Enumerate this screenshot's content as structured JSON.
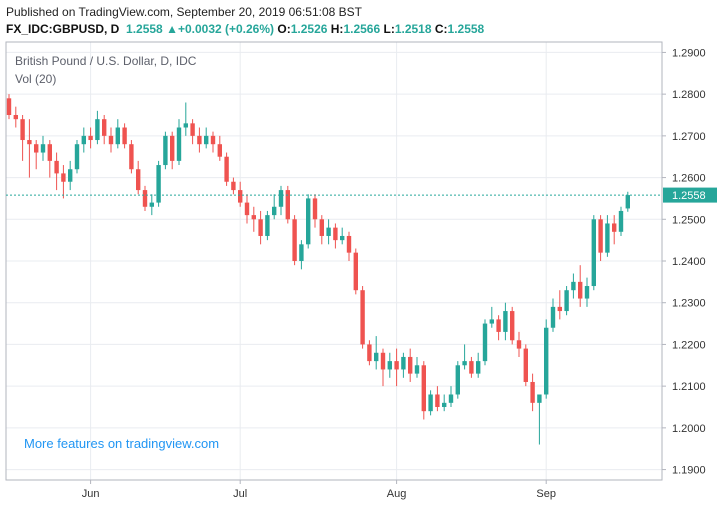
{
  "header": {
    "published": "Published on TradingView.com, September 20, 2019 06:51:08 BST",
    "symbol": "FX_IDC:GBPUSD, D",
    "last": "1.2558",
    "arrow": "▲",
    "change": "+0.0032 (+0.26%)",
    "o_label": "O:",
    "o_val": "1.2526",
    "h_label": "H:",
    "h_val": "1.2566",
    "l_label": "L:",
    "l_val": "1.2518",
    "c_label": "C:",
    "c_val": "1.2558"
  },
  "footer_link": "More features on tradingview.com",
  "colors": {
    "up": "#26a69a",
    "down": "#ef5350",
    "grid": "#e9ecf0",
    "last_price": "#26a69a"
  },
  "chart_data": {
    "type": "candlestick",
    "title": "British Pound / U.S. Dollar, D, IDC",
    "subtitle": "Vol (20)",
    "last_price": 1.2558,
    "last_price_label": "1.2558",
    "ylim": [
      1.1875,
      1.2925
    ],
    "yticks": [
      1.19,
      1.2,
      1.21,
      1.22,
      1.23,
      1.24,
      1.25,
      1.26,
      1.27,
      1.28,
      1.29
    ],
    "ytick_labels": [
      "1.1900",
      "1.2000",
      "1.2100",
      "1.2200",
      "1.2300",
      "1.2400",
      "1.2500",
      "1.2600",
      "1.2700",
      "1.2800",
      "1.2900"
    ],
    "xtick_labels": [
      {
        "label": "Jun",
        "index": 12
      },
      {
        "label": "Jul",
        "index": 34
      },
      {
        "label": "Aug",
        "index": 57
      },
      {
        "label": "Sep",
        "index": 79
      }
    ],
    "candles": [
      [
        1.279,
        1.28,
        1.274,
        1.275
      ],
      [
        1.275,
        1.277,
        1.272,
        1.274
      ],
      [
        1.274,
        1.275,
        1.264,
        1.269
      ],
      [
        1.269,
        1.274,
        1.26,
        1.268
      ],
      [
        1.268,
        1.269,
        1.262,
        1.266
      ],
      [
        1.266,
        1.27,
        1.264,
        1.268
      ],
      [
        1.268,
        1.269,
        1.26,
        1.264
      ],
      [
        1.264,
        1.266,
        1.257,
        1.261
      ],
      [
        1.261,
        1.263,
        1.255,
        1.259
      ],
      [
        1.259,
        1.264,
        1.257,
        1.262
      ],
      [
        1.262,
        1.269,
        1.261,
        1.268
      ],
      [
        1.268,
        1.272,
        1.266,
        1.27
      ],
      [
        1.27,
        1.272,
        1.267,
        1.269
      ],
      [
        1.269,
        1.276,
        1.268,
        1.274
      ],
      [
        1.274,
        1.275,
        1.268,
        1.27
      ],
      [
        1.27,
        1.272,
        1.266,
        1.268
      ],
      [
        1.268,
        1.274,
        1.267,
        1.272
      ],
      [
        1.272,
        1.273,
        1.267,
        1.268
      ],
      [
        1.268,
        1.269,
        1.261,
        1.262
      ],
      [
        1.262,
        1.264,
        1.256,
        1.257
      ],
      [
        1.257,
        1.258,
        1.252,
        1.253
      ],
      [
        1.253,
        1.256,
        1.251,
        1.254
      ],
      [
        1.254,
        1.264,
        1.253,
        1.263
      ],
      [
        1.263,
        1.271,
        1.262,
        1.27
      ],
      [
        1.27,
        1.271,
        1.262,
        1.264
      ],
      [
        1.264,
        1.274,
        1.263,
        1.272
      ],
      [
        1.272,
        1.278,
        1.27,
        1.273
      ],
      [
        1.273,
        1.274,
        1.268,
        1.27
      ],
      [
        1.27,
        1.272,
        1.266,
        1.268
      ],
      [
        1.268,
        1.272,
        1.267,
        1.27
      ],
      [
        1.27,
        1.271,
        1.266,
        1.268
      ],
      [
        1.268,
        1.27,
        1.264,
        1.265
      ],
      [
        1.265,
        1.266,
        1.258,
        1.259
      ],
      [
        1.259,
        1.26,
        1.256,
        1.257
      ],
      [
        1.257,
        1.259,
        1.253,
        1.254
      ],
      [
        1.254,
        1.256,
        1.249,
        1.251
      ],
      [
        1.251,
        1.253,
        1.247,
        1.25
      ],
      [
        1.25,
        1.252,
        1.244,
        1.246
      ],
      [
        1.246,
        1.252,
        1.245,
        1.251
      ],
      [
        1.251,
        1.256,
        1.25,
        1.253
      ],
      [
        1.253,
        1.258,
        1.251,
        1.257
      ],
      [
        1.257,
        1.258,
        1.249,
        1.25
      ],
      [
        1.25,
        1.251,
        1.239,
        1.24
      ],
      [
        1.24,
        1.245,
        1.238,
        1.244
      ],
      [
        1.244,
        1.256,
        1.243,
        1.255
      ],
      [
        1.255,
        1.256,
        1.248,
        1.25
      ],
      [
        1.25,
        1.251,
        1.244,
        1.246
      ],
      [
        1.246,
        1.25,
        1.244,
        1.248
      ],
      [
        1.248,
        1.249,
        1.243,
        1.245
      ],
      [
        1.245,
        1.248,
        1.244,
        1.246
      ],
      [
        1.246,
        1.247,
        1.24,
        1.242
      ],
      [
        1.242,
        1.243,
        1.232,
        1.233
      ],
      [
        1.233,
        1.234,
        1.219,
        1.22
      ],
      [
        1.22,
        1.221,
        1.215,
        1.216
      ],
      [
        1.216,
        1.222,
        1.214,
        1.218
      ],
      [
        1.218,
        1.219,
        1.21,
        1.214
      ],
      [
        1.214,
        1.218,
        1.212,
        1.216
      ],
      [
        1.216,
        1.219,
        1.21,
        1.214
      ],
      [
        1.214,
        1.218,
        1.212,
        1.217
      ],
      [
        1.217,
        1.219,
        1.211,
        1.213
      ],
      [
        1.213,
        1.217,
        1.212,
        1.215
      ],
      [
        1.215,
        1.216,
        1.202,
        1.204
      ],
      [
        1.204,
        1.209,
        1.203,
        1.208
      ],
      [
        1.208,
        1.21,
        1.204,
        1.205
      ],
      [
        1.205,
        1.208,
        1.204,
        1.206
      ],
      [
        1.206,
        1.21,
        1.205,
        1.208
      ],
      [
        1.208,
        1.216,
        1.207,
        1.215
      ],
      [
        1.215,
        1.22,
        1.214,
        1.216
      ],
      [
        1.216,
        1.217,
        1.212,
        1.213
      ],
      [
        1.213,
        1.218,
        1.212,
        1.216
      ],
      [
        1.216,
        1.226,
        1.215,
        1.225
      ],
      [
        1.225,
        1.229,
        1.224,
        1.226
      ],
      [
        1.226,
        1.227,
        1.221,
        1.223
      ],
      [
        1.223,
        1.23,
        1.221,
        1.228
      ],
      [
        1.228,
        1.229,
        1.22,
        1.221
      ],
      [
        1.221,
        1.223,
        1.217,
        1.219
      ],
      [
        1.219,
        1.22,
        1.21,
        1.211
      ],
      [
        1.211,
        1.213,
        1.204,
        1.206
      ],
      [
        1.206,
        1.208,
        1.196,
        1.208
      ],
      [
        1.208,
        1.226,
        1.207,
        1.224
      ],
      [
        1.224,
        1.231,
        1.223,
        1.229
      ],
      [
        1.229,
        1.233,
        1.226,
        1.228
      ],
      [
        1.228,
        1.234,
        1.227,
        1.233
      ],
      [
        1.233,
        1.237,
        1.231,
        1.235
      ],
      [
        1.235,
        1.239,
        1.229,
        1.231
      ],
      [
        1.231,
        1.236,
        1.229,
        1.234
      ],
      [
        1.234,
        1.251,
        1.233,
        1.25
      ],
      [
        1.25,
        1.251,
        1.24,
        1.242
      ],
      [
        1.242,
        1.251,
        1.241,
        1.249
      ],
      [
        1.249,
        1.251,
        1.244,
        1.247
      ],
      [
        1.247,
        1.253,
        1.246,
        1.252
      ],
      [
        1.2526,
        1.2566,
        1.2518,
        1.2558
      ]
    ]
  }
}
